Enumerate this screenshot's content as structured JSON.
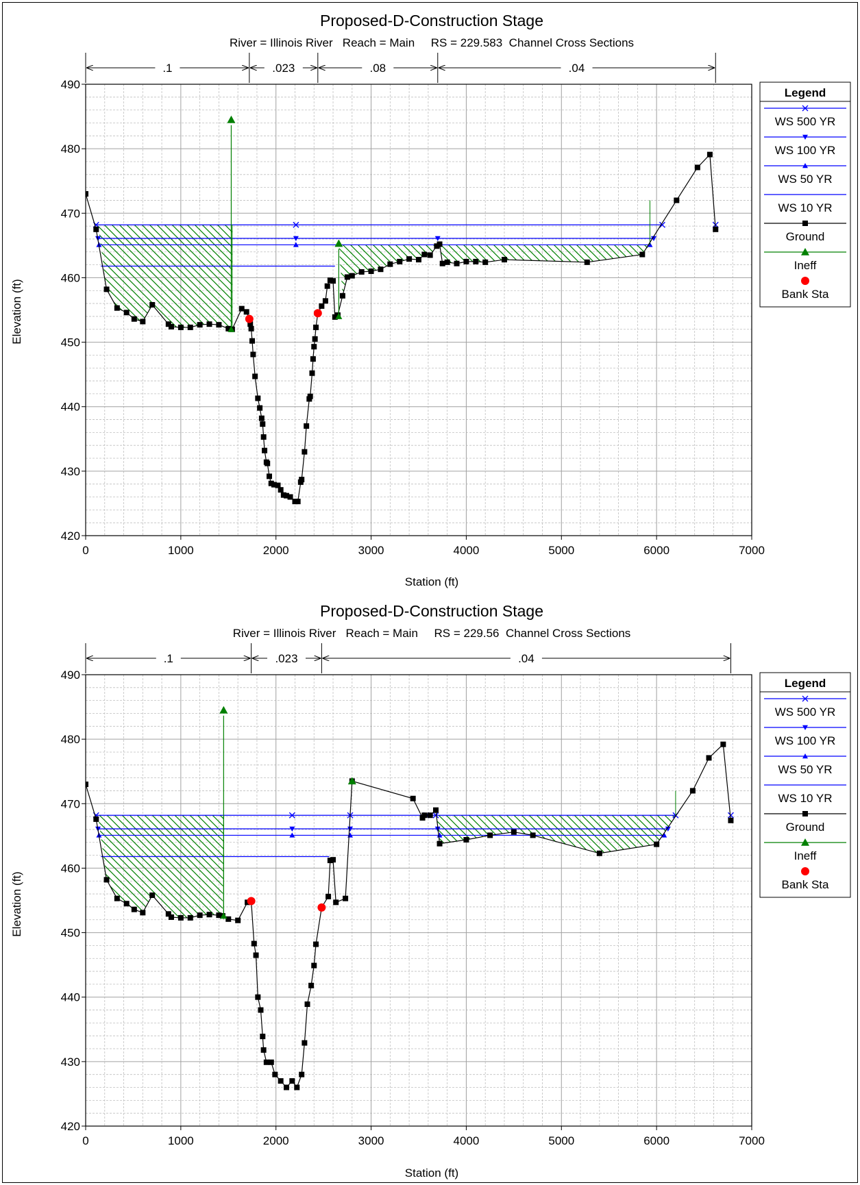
{
  "charts": [
    {
      "title": "Proposed-D-Construction Stage",
      "subtitle": "River = Illinois River   Reach = Main     RS = 229.583  Channel Cross Sections",
      "xlabel": "Station (ft)",
      "ylabel": "Elevation (ft)",
      "legend_title": "Legend",
      "legend_items": [
        "WS 500 YR",
        "WS 100 YR",
        "WS 50 YR",
        "WS 10 YR",
        "Ground",
        "Ineff",
        "Bank Sta"
      ],
      "x_ticks": [
        "0",
        "1000",
        "2000",
        "3000",
        "4000",
        "5000",
        "6000",
        "7000"
      ],
      "y_ticks": [
        "420",
        "430",
        "440",
        "450",
        "460",
        "470",
        "480",
        "490"
      ],
      "n_labels": [
        ".1",
        ".023",
        ".08",
        ".04"
      ]
    },
    {
      "title": "Proposed-D-Construction Stage",
      "subtitle": "River = Illinois River   Reach = Main     RS = 229.56  Channel Cross Sections",
      "xlabel": "Station (ft)",
      "ylabel": "Elevation (ft)",
      "legend_title": "Legend",
      "legend_items": [
        "WS 500 YR",
        "WS 100 YR",
        "WS 50 YR",
        "WS 10 YR",
        "Ground",
        "Ineff",
        "Bank Sta"
      ],
      "x_ticks": [
        "0",
        "1000",
        "2000",
        "3000",
        "4000",
        "5000",
        "6000",
        "7000"
      ],
      "y_ticks": [
        "420",
        "430",
        "440",
        "450",
        "460",
        "470",
        "480",
        "490"
      ],
      "n_labels": [
        ".1",
        ".023",
        ".04"
      ]
    }
  ],
  "colors": {
    "ground": "#000000",
    "water": "#0000ff",
    "ineff": "#008000",
    "bank": "#ff0000",
    "grid": "#bfbfbf"
  },
  "chart_data": [
    {
      "type": "line",
      "title": "Proposed-D-Construction Stage",
      "xlabel": "Station (ft)",
      "ylabel": "Elevation (ft)",
      "xlim": [
        0,
        7000
      ],
      "ylim": [
        420,
        490
      ],
      "manning_n": [
        {
          "label": ".1",
          "from": 0,
          "to": 1720
        },
        {
          "label": ".023",
          "from": 1720,
          "to": 2440
        },
        {
          "label": ".08",
          "from": 2440,
          "to": 3700
        },
        {
          "label": ".04",
          "from": 3700,
          "to": 6620
        }
      ],
      "ground": [
        [
          0,
          473
        ],
        [
          110,
          467.5
        ],
        [
          220,
          458.2
        ],
        [
          330,
          455.3
        ],
        [
          430,
          454.6
        ],
        [
          510,
          453.6
        ],
        [
          600,
          453.2
        ],
        [
          700,
          455.8
        ],
        [
          870,
          452.8
        ],
        [
          900,
          452.4
        ],
        [
          1000,
          452.3
        ],
        [
          1100,
          452.3
        ],
        [
          1200,
          452.7
        ],
        [
          1300,
          452.8
        ],
        [
          1400,
          452.7
        ],
        [
          1500,
          452.1
        ],
        [
          1540,
          452
        ],
        [
          1640,
          455.2
        ],
        [
          1690,
          454.7
        ],
        [
          1720,
          453.6
        ],
        [
          1730,
          452.8
        ],
        [
          1740,
          452.1
        ],
        [
          1750,
          450.2
        ],
        [
          1760,
          448.1
        ],
        [
          1780,
          444.7
        ],
        [
          1810,
          441.3
        ],
        [
          1830,
          439.8
        ],
        [
          1850,
          438.2
        ],
        [
          1860,
          437.3
        ],
        [
          1870,
          435.3
        ],
        [
          1880,
          433.2
        ],
        [
          1900,
          431.4
        ],
        [
          1910,
          431.2
        ],
        [
          1930,
          429.2
        ],
        [
          1950,
          428.1
        ],
        [
          1980,
          427.9
        ],
        [
          2020,
          427.8
        ],
        [
          2050,
          427.1
        ],
        [
          2080,
          426.3
        ],
        [
          2110,
          426.2
        ],
        [
          2150,
          426
        ],
        [
          2200,
          425.3
        ],
        [
          2230,
          425.3
        ],
        [
          2260,
          428.3
        ],
        [
          2270,
          428.7
        ],
        [
          2300,
          433
        ],
        [
          2320,
          437
        ],
        [
          2350,
          441.2
        ],
        [
          2360,
          441.6
        ],
        [
          2380,
          445.2
        ],
        [
          2390,
          447.4
        ],
        [
          2400,
          449.3
        ],
        [
          2410,
          450.5
        ],
        [
          2420,
          452.3
        ],
        [
          2440,
          454.5
        ],
        [
          2480,
          455.6
        ],
        [
          2520,
          456.4
        ],
        [
          2540,
          458.7
        ],
        [
          2570,
          459.6
        ],
        [
          2600,
          459.5
        ],
        [
          2620,
          453.9
        ],
        [
          2650,
          454.2
        ],
        [
          2700,
          457.2
        ],
        [
          2750,
          460.1
        ],
        [
          2800,
          460.3
        ],
        [
          2900,
          460.9
        ],
        [
          3000,
          461
        ],
        [
          3100,
          461.3
        ],
        [
          3200,
          462.1
        ],
        [
          3300,
          462.5
        ],
        [
          3400,
          462.9
        ],
        [
          3500,
          462.8
        ],
        [
          3560,
          463.6
        ],
        [
          3620,
          463.5
        ],
        [
          3690,
          464.9
        ],
        [
          3720,
          465.2
        ],
        [
          3750,
          462.2
        ],
        [
          3800,
          462.4
        ],
        [
          3900,
          462.2
        ],
        [
          4000,
          462.5
        ],
        [
          4100,
          462.5
        ],
        [
          4200,
          462.4
        ],
        [
          4400,
          462.8
        ],
        [
          5270,
          462.4
        ],
        [
          5850,
          463.6
        ],
        [
          6210,
          472
        ],
        [
          6430,
          477.1
        ],
        [
          6560,
          479.1
        ],
        [
          6620,
          467.5
        ]
      ],
      "ineffective": [
        {
          "x": 1530,
          "top": 484.5,
          "bottom": 452
        },
        {
          "x": 2660,
          "top": 465.3,
          "bottom": 454
        }
      ],
      "bank_stations": [
        [
          1720,
          453.6
        ],
        [
          2440,
          454.5
        ]
      ],
      "water_surfaces": [
        {
          "name": "WS 500 YR",
          "elevation": 468.2,
          "marker": "x",
          "left_x": 110,
          "right_x": 6060,
          "markers": [
            110,
            2210,
            6060,
            6620
          ]
        },
        {
          "name": "WS 100 YR",
          "elevation": 466.1,
          "marker": "tri-down",
          "left_x": 130,
          "right_x": 5970,
          "markers": [
            130,
            2210,
            3700,
            5970
          ]
        },
        {
          "name": "WS 50 YR",
          "elevation": 465.1,
          "marker": "tri-up",
          "left_x": 140,
          "right_x": 5930,
          "markers": [
            140,
            2210,
            3700,
            5930
          ]
        },
        {
          "name": "WS 10 YR",
          "elevation": 461.8,
          "marker": "none",
          "left_x": 160,
          "right_x": 2620,
          "markers": []
        }
      ],
      "hatch_regions": [
        {
          "x_from": 130,
          "x_to": 1540,
          "top": 468.2
        },
        {
          "x_from": 2660,
          "x_to": 5930,
          "top": 465.1
        }
      ]
    },
    {
      "type": "line",
      "title": "Proposed-D-Construction Stage",
      "xlabel": "Station (ft)",
      "ylabel": "Elevation (ft)",
      "xlim": [
        0,
        7000
      ],
      "ylim": [
        420,
        490
      ],
      "manning_n": [
        {
          "label": ".1",
          "from": 0,
          "to": 1740
        },
        {
          "label": ".023",
          "from": 1740,
          "to": 2480
        },
        {
          "label": ".04",
          "from": 2480,
          "to": 6780
        }
      ],
      "ground": [
        [
          0,
          473
        ],
        [
          110,
          467.6
        ],
        [
          220,
          458.2
        ],
        [
          330,
          455.3
        ],
        [
          430,
          454.5
        ],
        [
          510,
          453.6
        ],
        [
          600,
          453.1
        ],
        [
          700,
          455.8
        ],
        [
          870,
          452.9
        ],
        [
          900,
          452.4
        ],
        [
          1000,
          452.3
        ],
        [
          1100,
          452.3
        ],
        [
          1200,
          452.7
        ],
        [
          1300,
          452.8
        ],
        [
          1400,
          452.7
        ],
        [
          1440,
          452.6
        ],
        [
          1500,
          452.1
        ],
        [
          1600,
          451.9
        ],
        [
          1700,
          454.7
        ],
        [
          1740,
          454.9
        ],
        [
          1770,
          448.3
        ],
        [
          1790,
          446.5
        ],
        [
          1810,
          440
        ],
        [
          1840,
          438
        ],
        [
          1860,
          433.9
        ],
        [
          1870,
          431.8
        ],
        [
          1900,
          429.9
        ],
        [
          1950,
          429.9
        ],
        [
          1990,
          428
        ],
        [
          2050,
          427
        ],
        [
          2110,
          426
        ],
        [
          2170,
          427
        ],
        [
          2220,
          426
        ],
        [
          2270,
          428
        ],
        [
          2300,
          432.9
        ],
        [
          2330,
          438.9
        ],
        [
          2370,
          441.8
        ],
        [
          2400,
          444.9
        ],
        [
          2420,
          448.2
        ],
        [
          2480,
          453.9
        ],
        [
          2550,
          455.6
        ],
        [
          2570,
          461.2
        ],
        [
          2600,
          461.3
        ],
        [
          2630,
          454.7
        ],
        [
          2730,
          455.3
        ],
        [
          2800,
          473.5
        ],
        [
          3440,
          470.8
        ],
        [
          3540,
          467.8
        ],
        [
          3560,
          468.2
        ],
        [
          3620,
          468.2
        ],
        [
          3680,
          469
        ],
        [
          3720,
          463.8
        ],
        [
          4000,
          464.4
        ],
        [
          4250,
          465.1
        ],
        [
          4500,
          465.6
        ],
        [
          4700,
          465.1
        ],
        [
          5400,
          462.3
        ],
        [
          6000,
          463.7
        ],
        [
          6380,
          472
        ],
        [
          6550,
          477.1
        ],
        [
          6700,
          479.2
        ],
        [
          6780,
          467.4
        ]
      ],
      "ineffective": [
        {
          "x": 1450,
          "top": 484.5,
          "bottom": 452.6
        },
        {
          "x": 2800,
          "top": 473.5,
          "bottom": 473.5
        }
      ],
      "bank_stations": [
        [
          1740,
          454.9
        ],
        [
          2480,
          453.9
        ]
      ],
      "water_surfaces": [
        {
          "name": "WS 500 YR",
          "elevation": 468.2,
          "marker": "x",
          "left_x": 110,
          "right_x": 6200,
          "markers": [
            110,
            2170,
            2780,
            3580,
            3680,
            6200,
            6780
          ]
        },
        {
          "name": "WS 100 YR",
          "elevation": 466.1,
          "marker": "tri-down",
          "left_x": 130,
          "right_x": 6120,
          "markers": [
            130,
            2170,
            2780,
            3700,
            6120
          ]
        },
        {
          "name": "WS 50 YR",
          "elevation": 465.1,
          "marker": "tri-up",
          "left_x": 140,
          "right_x": 6080,
          "markers": [
            140,
            2170,
            2780,
            3720,
            4250,
            4700,
            6080
          ]
        },
        {
          "name": "WS 10 YR",
          "elevation": 461.8,
          "marker": "none",
          "left_x": 160,
          "right_x": 2560,
          "markers": []
        }
      ],
      "hatch_regions": [
        {
          "x_from": 130,
          "x_to": 1450,
          "top": 468.2
        },
        {
          "x_from": 3690,
          "x_to": 6200,
          "top": 468.2
        }
      ]
    }
  ]
}
